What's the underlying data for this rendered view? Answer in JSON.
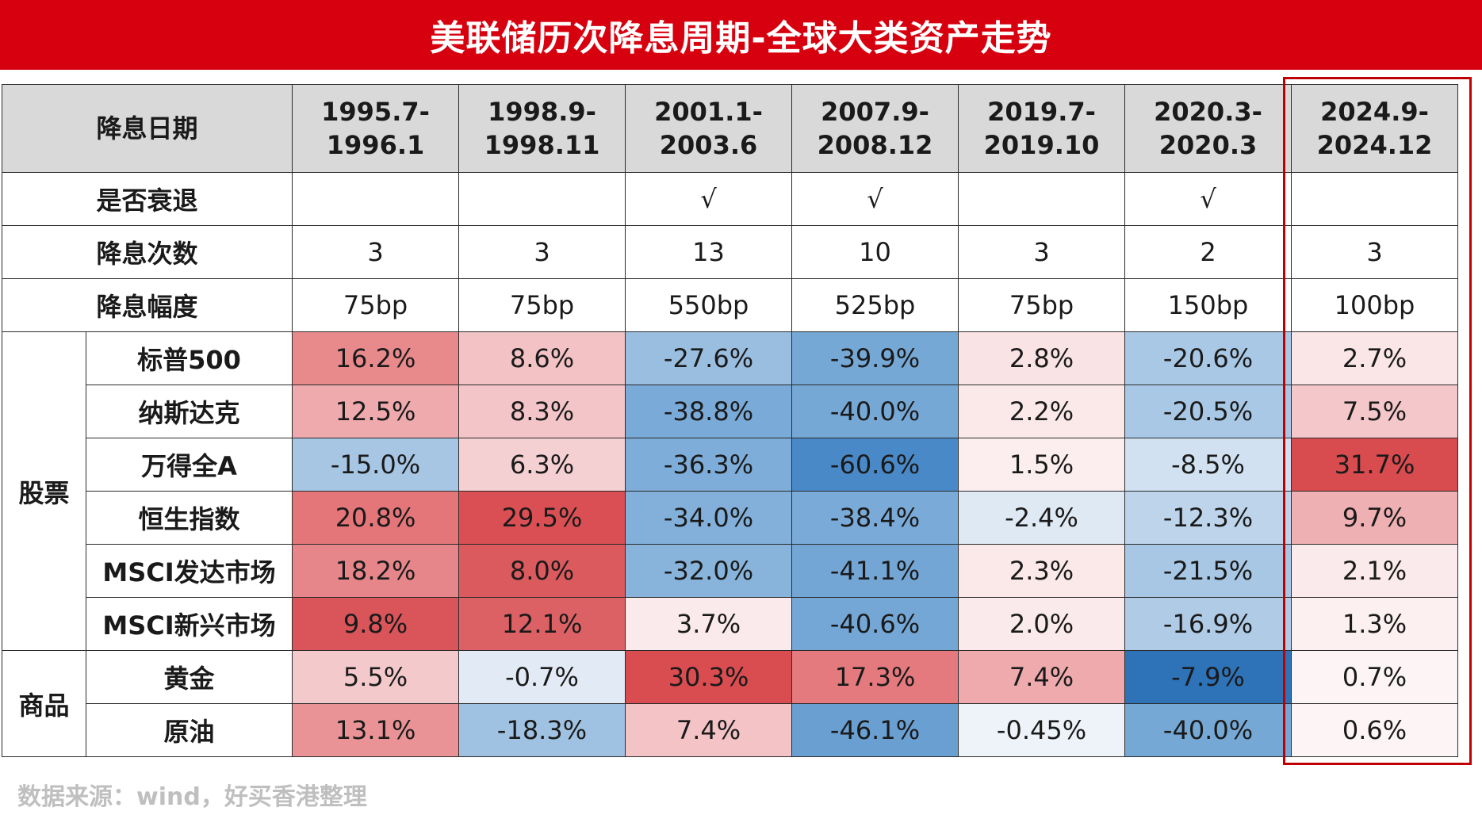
{
  "title": "美联储历次降息周期-全球大类资产走势",
  "header": {
    "label": "降息日期",
    "periods": [
      {
        "line1": "1995.7-",
        "line2": "1996.1"
      },
      {
        "line1": "1998.9-",
        "line2": "1998.11"
      },
      {
        "line1": "2001.1-",
        "line2": "2003.6"
      },
      {
        "line1": "2007.9-",
        "line2": "2008.12"
      },
      {
        "line1": "2019.7-",
        "line2": "2019.10"
      },
      {
        "line1": "2020.3-",
        "line2": "2020.3"
      },
      {
        "line1": "2024.9-",
        "line2": "2024.12"
      }
    ]
  },
  "info_rows": [
    {
      "label": "是否衰退",
      "values": [
        "",
        "",
        "√",
        "√",
        "",
        "√",
        ""
      ]
    },
    {
      "label": "降息次数",
      "values": [
        "3",
        "3",
        "13",
        "10",
        "3",
        "2",
        "3"
      ]
    },
    {
      "label": "降息幅度",
      "values": [
        "75bp",
        "75bp",
        "550bp",
        "525bp",
        "75bp",
        "150bp",
        "100bp"
      ]
    }
  ],
  "groups": [
    {
      "name": "股票",
      "rows": [
        {
          "label": "标普500",
          "values": [
            "16.2%",
            "8.6%",
            "-27.6%",
            "-39.9%",
            "2.8%",
            "-20.6%",
            "2.7%"
          ],
          "colors": [
            "#e88a8c",
            "#f2c2c5",
            "#9abedf",
            "#76a8d6",
            "#fae3e5",
            "#a9c8e5",
            "#fae5e7"
          ]
        },
        {
          "label": "纳斯达克",
          "values": [
            "12.5%",
            "8.3%",
            "-38.8%",
            "-40.0%",
            "2.2%",
            "-20.5%",
            "7.5%"
          ],
          "colors": [
            "#eeaaad",
            "#f3c5c8",
            "#7aaad8",
            "#76a8d6",
            "#fbe9ea",
            "#a9c8e5",
            "#f4c8cb"
          ]
        },
        {
          "label": "万得全A",
          "values": [
            "-15.0%",
            "6.3%",
            "-36.3%",
            "-60.6%",
            "1.5%",
            "-8.5%",
            "31.7%"
          ],
          "colors": [
            "#a6c6e4",
            "#f5d0d3",
            "#7eadd9",
            "#4a89c8",
            "#fcedee",
            "#d1e1f1",
            "#d84b4f"
          ]
        },
        {
          "label": "恒生指数",
          "values": [
            "20.8%",
            "29.5%",
            "-34.0%",
            "-38.4%",
            "-2.4%",
            "-12.3%",
            "9.7%"
          ],
          "colors": [
            "#e4767a",
            "#d94f53",
            "#82b0da",
            "#7aaad8",
            "#dfe9f4",
            "#bdd4eb",
            "#efb0b3"
          ]
        },
        {
          "label": "MSCI发达市场",
          "values": [
            "18.2%",
            "8.0%",
            "-32.0%",
            "-41.1%",
            "2.3%",
            "-21.5%",
            "2.1%"
          ],
          "colors": [
            "#e7868a",
            "#db5a5e",
            "#88b4dc",
            "#74a6d5",
            "#fbe8e9",
            "#a7c7e4",
            "#fbeaeb"
          ]
        },
        {
          "label": "MSCI新兴市场",
          "values": [
            "9.8%",
            "12.1%",
            "3.7%",
            "-40.6%",
            "2.0%",
            "-16.9%",
            "1.3%"
          ],
          "colors": [
            "#d9555a",
            "#dc6165",
            "#faeaeb",
            "#75a7d6",
            "#fbeaeb",
            "#afcbe6",
            "#fdf0f1"
          ]
        }
      ]
    },
    {
      "name": "商品",
      "rows": [
        {
          "label": "黄金",
          "values": [
            "5.5%",
            "-0.7%",
            "30.3%",
            "17.3%",
            "7.4%",
            "-7.9%",
            "0.7%"
          ],
          "colors": [
            "#f4c9cc",
            "#e2ebf5",
            "#d94d51",
            "#e47a7e",
            "#eeaaad",
            "#2e72b8",
            "#fdf5f5"
          ]
        },
        {
          "label": "原油",
          "values": [
            "13.1%",
            "-18.3%",
            "7.4%",
            "-46.1%",
            "-0.45%",
            "-40.0%",
            "0.6%"
          ],
          "colors": [
            "#e99396",
            "#a0c2e2",
            "#f3c3c6",
            "#6a9fd2",
            "#eef3f9",
            "#76a8d6",
            "#fdf5f5"
          ]
        }
      ]
    }
  ],
  "source": "数据来源：wind，好买香港整理",
  "colors": {
    "title_bg": "#d7000f",
    "header_bg": "#d9d9d9",
    "highlight_border": "#c00000"
  }
}
